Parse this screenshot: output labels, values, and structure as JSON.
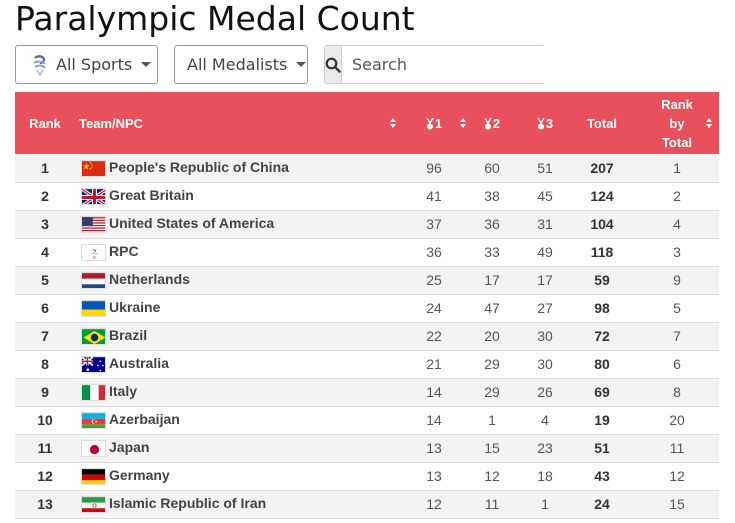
{
  "page_title": "Paralympic Medal Count",
  "filters": {
    "sports_label": "All Sports",
    "medalists_label": "All Medalists"
  },
  "search": {
    "placeholder": "Search"
  },
  "table": {
    "headers": {
      "rank": "Rank",
      "team": "Team/NPC",
      "gold": "1",
      "silver": "2",
      "bronze": "3",
      "total": "Total",
      "rank_by_total_1": "Rank",
      "rank_by_total_2": "by",
      "rank_by_total_3": "Total"
    },
    "rows": [
      {
        "rank": "1",
        "team": "People's Republic of China",
        "gold": "96",
        "silver": "60",
        "bronze": "51",
        "total": "207",
        "rank_total": "1",
        "flag": "china"
      },
      {
        "rank": "2",
        "team": "Great Britain",
        "gold": "41",
        "silver": "38",
        "bronze": "45",
        "total": "124",
        "rank_total": "2",
        "flag": "uk"
      },
      {
        "rank": "3",
        "team": "United States of America",
        "gold": "37",
        "silver": "36",
        "bronze": "31",
        "total": "104",
        "rank_total": "4",
        "flag": "usa"
      },
      {
        "rank": "4",
        "team": "RPC",
        "gold": "36",
        "silver": "33",
        "bronze": "49",
        "total": "118",
        "rank_total": "3",
        "flag": "rpc"
      },
      {
        "rank": "5",
        "team": "Netherlands",
        "gold": "25",
        "silver": "17",
        "bronze": "17",
        "total": "59",
        "rank_total": "9",
        "flag": "netherlands"
      },
      {
        "rank": "6",
        "team": "Ukraine",
        "gold": "24",
        "silver": "47",
        "bronze": "27",
        "total": "98",
        "rank_total": "5",
        "flag": "ukraine"
      },
      {
        "rank": "7",
        "team": "Brazil",
        "gold": "22",
        "silver": "20",
        "bronze": "30",
        "total": "72",
        "rank_total": "7",
        "flag": "brazil"
      },
      {
        "rank": "8",
        "team": "Australia",
        "gold": "21",
        "silver": "29",
        "bronze": "30",
        "total": "80",
        "rank_total": "6",
        "flag": "australia"
      },
      {
        "rank": "9",
        "team": "Italy",
        "gold": "14",
        "silver": "29",
        "bronze": "26",
        "total": "69",
        "rank_total": "8",
        "flag": "italy"
      },
      {
        "rank": "10",
        "team": "Azerbaijan",
        "gold": "14",
        "silver": "1",
        "bronze": "4",
        "total": "19",
        "rank_total": "20",
        "flag": "azerbaijan"
      },
      {
        "rank": "11",
        "team": "Japan",
        "gold": "13",
        "silver": "15",
        "bronze": "23",
        "total": "51",
        "rank_total": "11",
        "flag": "japan"
      },
      {
        "rank": "12",
        "team": "Germany",
        "gold": "13",
        "silver": "12",
        "bronze": "18",
        "total": "43",
        "rank_total": "12",
        "flag": "germany"
      },
      {
        "rank": "13",
        "team": "Islamic Republic of Iran",
        "gold": "12",
        "silver": "11",
        "bronze": "1",
        "total": "24",
        "rank_total": "15",
        "flag": "iran"
      }
    ]
  },
  "colors": {
    "header_bg": "#e8515b",
    "row_alt": "#f3f3f3"
  }
}
